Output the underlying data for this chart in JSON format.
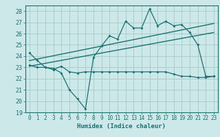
{
  "title": "",
  "xlabel": "Humidex (Indice chaleur)",
  "ylabel": "",
  "bg_color": "#cce8e8",
  "grid_color": "#aacccc",
  "line_color": "#1a7070",
  "xlim": [
    -0.5,
    23.5
  ],
  "ylim": [
    19,
    28.5
  ],
  "xticks": [
    0,
    1,
    2,
    3,
    4,
    5,
    6,
    7,
    8,
    9,
    10,
    11,
    12,
    13,
    14,
    15,
    16,
    17,
    18,
    19,
    20,
    21,
    22,
    23
  ],
  "yticks": [
    19,
    20,
    21,
    22,
    23,
    24,
    25,
    26,
    27,
    28
  ],
  "main_series": {
    "x": [
      0,
      1,
      2,
      3,
      4,
      5,
      6,
      7,
      8,
      9,
      10,
      11,
      12,
      13,
      14,
      15,
      16,
      17,
      18,
      19,
      20,
      21,
      22,
      23
    ],
    "y": [
      24.3,
      23.6,
      23.0,
      22.9,
      22.5,
      21.0,
      20.2,
      19.3,
      23.9,
      24.9,
      25.8,
      25.5,
      27.1,
      26.5,
      26.5,
      28.2,
      26.7,
      27.1,
      26.7,
      26.8,
      26.1,
      25.0,
      22.2,
      22.2
    ]
  },
  "lower_series": {
    "x": [
      0,
      1,
      2,
      3,
      4,
      5,
      6,
      7,
      8,
      9,
      10,
      11,
      12,
      13,
      14,
      15,
      16,
      17,
      18,
      19,
      20,
      21,
      22,
      23
    ],
    "y": [
      23.2,
      23.0,
      23.0,
      22.8,
      23.1,
      22.6,
      22.5,
      22.6,
      22.6,
      22.6,
      22.6,
      22.6,
      22.6,
      22.6,
      22.6,
      22.6,
      22.6,
      22.6,
      22.4,
      22.2,
      22.2,
      22.1,
      22.1,
      22.2
    ]
  },
  "upper_line": {
    "x": [
      0,
      23
    ],
    "y": [
      23.6,
      26.9
    ]
  },
  "lower_line": {
    "x": [
      0,
      23
    ],
    "y": [
      23.1,
      26.1
    ]
  }
}
